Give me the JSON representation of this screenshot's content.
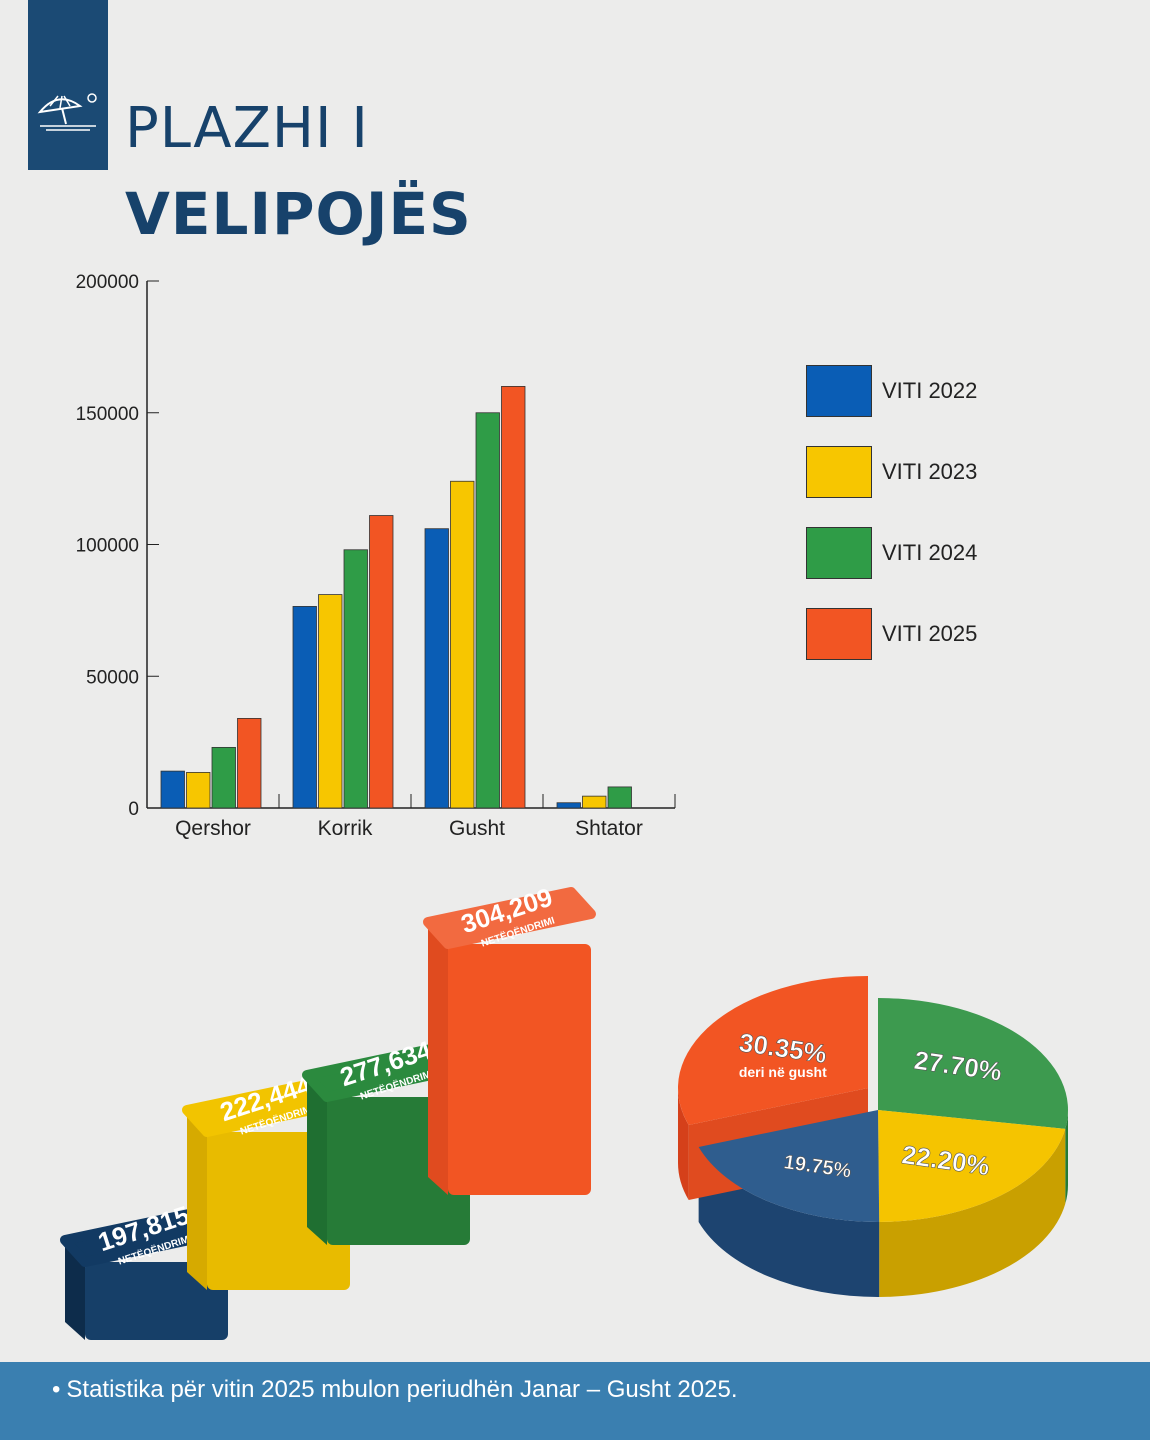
{
  "header": {
    "title_line1": "PLAZHI I",
    "title_line2": "VELIPOJËS"
  },
  "colors": {
    "y2022": "#0a5db5",
    "y2023": "#f7c600",
    "y2024": "#2f9c47",
    "y2025": "#f25523",
    "navy": "#123a63",
    "brand": "#1b4a74"
  },
  "chart_data": [
    {
      "type": "bar",
      "title": "",
      "xlabel": "",
      "ylabel": "",
      "ylim": [
        0,
        200000
      ],
      "yticks": [
        "0",
        "50000",
        "100000",
        "150000",
        "200000"
      ],
      "categories": [
        "Qershor",
        "Korrik",
        "Gusht",
        "Shtator"
      ],
      "series": [
        {
          "name": "VITI 2022",
          "values": [
            14000,
            76500,
            106000,
            2000
          ]
        },
        {
          "name": "VITI 2023",
          "values": [
            13500,
            81000,
            124000,
            4500
          ]
        },
        {
          "name": "VITI 2024",
          "values": [
            23000,
            98000,
            150000,
            8000
          ]
        },
        {
          "name": "VITI 2025",
          "values": [
            34000,
            111000,
            160000,
            null
          ]
        }
      ],
      "legend": "right"
    },
    {
      "type": "bar",
      "title": "",
      "values": [
        197815,
        222444,
        277634,
        304209
      ],
      "labels": [
        "197,815",
        "222,444",
        "277,634",
        "304,209"
      ],
      "sublabel": "NETËQËNDRIMI"
    },
    {
      "type": "pie",
      "slices": [
        {
          "label": "27.70%",
          "value": 27.7
        },
        {
          "label": "22.20%",
          "value": 22.2
        },
        {
          "label": "19.75%",
          "value": 19.75
        },
        {
          "label": "30.35%",
          "value": 30.35,
          "note": "deri në gusht"
        }
      ]
    }
  ],
  "footer": {
    "bullet": "•",
    "text": "Statistika për vitin 2025 mbulon periudhën Janar – Gusht 2025."
  }
}
